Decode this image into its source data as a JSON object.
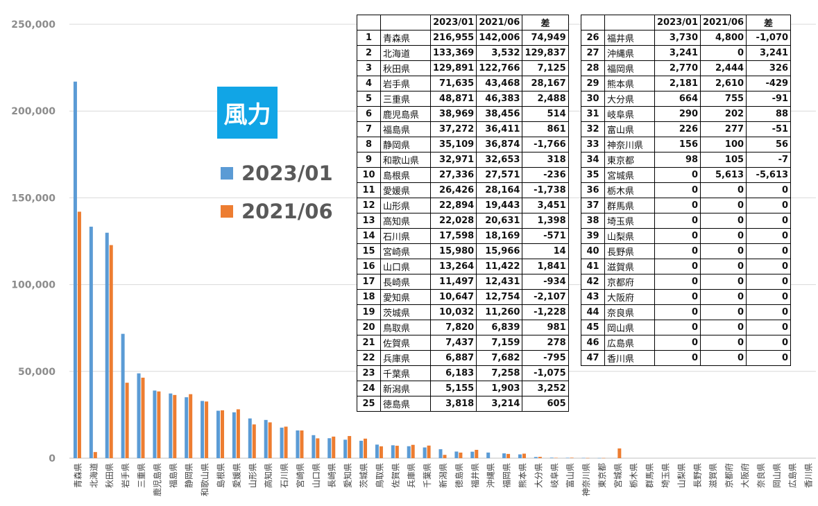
{
  "badge": "風力",
  "legend": {
    "a": {
      "label": "2023/01",
      "color": "#5b9bd5"
    },
    "b": {
      "label": "2021/06",
      "color": "#ed7d31"
    }
  },
  "table": {
    "headers": [
      "",
      "",
      "2023/01",
      "2021/06",
      "差"
    ],
    "rows": [
      [
        "1",
        "青森県",
        "216,955",
        "142,006",
        "74,949"
      ],
      [
        "2",
        "北海道",
        "133,369",
        "3,532",
        "129,837"
      ],
      [
        "3",
        "秋田県",
        "129,891",
        "122,766",
        "7,125"
      ],
      [
        "4",
        "岩手県",
        "71,635",
        "43,468",
        "28,167"
      ],
      [
        "5",
        "三重県",
        "48,871",
        "46,383",
        "2,488"
      ],
      [
        "6",
        "鹿児島県",
        "38,969",
        "38,456",
        "514"
      ],
      [
        "7",
        "福島県",
        "37,272",
        "36,411",
        "861"
      ],
      [
        "8",
        "静岡県",
        "35,109",
        "36,874",
        "-1,766"
      ],
      [
        "9",
        "和歌山県",
        "32,971",
        "32,653",
        "318"
      ],
      [
        "10",
        "島根県",
        "27,336",
        "27,571",
        "-236"
      ],
      [
        "11",
        "愛媛県",
        "26,426",
        "28,164",
        "-1,738"
      ],
      [
        "12",
        "山形県",
        "22,894",
        "19,443",
        "3,451"
      ],
      [
        "13",
        "高知県",
        "22,028",
        "20,631",
        "1,398"
      ],
      [
        "14",
        "石川県",
        "17,598",
        "18,169",
        "-571"
      ],
      [
        "15",
        "宮崎県",
        "15,980",
        "15,966",
        "14"
      ],
      [
        "16",
        "山口県",
        "13,264",
        "11,422",
        "1,841"
      ],
      [
        "17",
        "長崎県",
        "11,497",
        "12,431",
        "-934"
      ],
      [
        "18",
        "愛知県",
        "10,647",
        "12,754",
        "-2,107"
      ],
      [
        "19",
        "茨城県",
        "10,032",
        "11,260",
        "-1,228"
      ],
      [
        "20",
        "鳥取県",
        "7,820",
        "6,839",
        "981"
      ],
      [
        "21",
        "佐賀県",
        "7,437",
        "7,159",
        "278"
      ],
      [
        "22",
        "兵庫県",
        "6,887",
        "7,682",
        "-795"
      ],
      [
        "23",
        "千葉県",
        "6,183",
        "7,258",
        "-1,075"
      ],
      [
        "24",
        "新潟県",
        "5,155",
        "1,903",
        "3,252"
      ],
      [
        "25",
        "徳島県",
        "3,818",
        "3,214",
        "605"
      ],
      [
        "26",
        "福井県",
        "3,730",
        "4,800",
        "-1,070"
      ],
      [
        "27",
        "沖縄県",
        "3,241",
        "0",
        "3,241"
      ],
      [
        "28",
        "福岡県",
        "2,770",
        "2,444",
        "326"
      ],
      [
        "29",
        "熊本県",
        "2,181",
        "2,610",
        "-429"
      ],
      [
        "30",
        "大分県",
        "664",
        "755",
        "-91"
      ],
      [
        "31",
        "岐阜県",
        "290",
        "202",
        "88"
      ],
      [
        "32",
        "富山県",
        "226",
        "277",
        "-51"
      ],
      [
        "33",
        "神奈川県",
        "156",
        "100",
        "56"
      ],
      [
        "34",
        "東京都",
        "98",
        "105",
        "-7"
      ],
      [
        "35",
        "宮城県",
        "0",
        "5,613",
        "-5,613"
      ],
      [
        "36",
        "栃木県",
        "0",
        "0",
        "0"
      ],
      [
        "37",
        "群馬県",
        "0",
        "0",
        "0"
      ],
      [
        "38",
        "埼玉県",
        "0",
        "0",
        "0"
      ],
      [
        "39",
        "山梨県",
        "0",
        "0",
        "0"
      ],
      [
        "40",
        "長野県",
        "0",
        "0",
        "0"
      ],
      [
        "41",
        "滋賀県",
        "0",
        "0",
        "0"
      ],
      [
        "42",
        "京都府",
        "0",
        "0",
        "0"
      ],
      [
        "43",
        "大阪府",
        "0",
        "0",
        "0"
      ],
      [
        "44",
        "奈良県",
        "0",
        "0",
        "0"
      ],
      [
        "45",
        "岡山県",
        "0",
        "0",
        "0"
      ],
      [
        "46",
        "広島県",
        "0",
        "0",
        "0"
      ],
      [
        "47",
        "香川県",
        "0",
        "0",
        "0"
      ]
    ]
  },
  "chart_data": {
    "type": "bar",
    "ylim": [
      0,
      250000
    ],
    "yticks": [
      "0",
      "50,000",
      "100,000",
      "150,000",
      "200,000",
      "250,000"
    ],
    "ytick_values": [
      0,
      50000,
      100000,
      150000,
      200000,
      250000
    ],
    "grid": true,
    "categories": [
      "青森県",
      "北海道",
      "秋田県",
      "岩手県",
      "三重県",
      "鹿児島県",
      "福島県",
      "静岡県",
      "和歌山県",
      "島根県",
      "愛媛県",
      "山形県",
      "高知県",
      "石川県",
      "宮崎県",
      "山口県",
      "長崎県",
      "愛知県",
      "茨城県",
      "鳥取県",
      "佐賀県",
      "兵庫県",
      "千葉県",
      "新潟県",
      "徳島県",
      "福井県",
      "沖縄県",
      "福岡県",
      "熊本県",
      "大分県",
      "岐阜県",
      "富山県",
      "神奈川県",
      "東京都",
      "宮城県",
      "栃木県",
      "群馬県",
      "埼玉県",
      "山梨県",
      "長野県",
      "滋賀県",
      "京都府",
      "大阪府",
      "奈良県",
      "岡山県",
      "広島県",
      "香川県"
    ],
    "series": [
      {
        "name": "2023/01",
        "color": "#5b9bd5",
        "values": [
          216955,
          133369,
          129891,
          71635,
          48871,
          38969,
          37272,
          35109,
          32971,
          27336,
          26426,
          22894,
          22028,
          17598,
          15980,
          13264,
          11497,
          10647,
          10032,
          7820,
          7437,
          6887,
          6183,
          5155,
          3818,
          3730,
          3241,
          2770,
          2181,
          664,
          290,
          226,
          156,
          98,
          0,
          0,
          0,
          0,
          0,
          0,
          0,
          0,
          0,
          0,
          0,
          0,
          0
        ]
      },
      {
        "name": "2021/06",
        "color": "#ed7d31",
        "values": [
          142006,
          3532,
          122766,
          43468,
          46383,
          38456,
          36411,
          36874,
          32653,
          27571,
          28164,
          19443,
          20631,
          18169,
          15966,
          11422,
          12431,
          12754,
          11260,
          6839,
          7159,
          7682,
          7258,
          1903,
          3214,
          4800,
          0,
          2444,
          2610,
          755,
          202,
          277,
          100,
          105,
          5613,
          0,
          0,
          0,
          0,
          0,
          0,
          0,
          0,
          0,
          0,
          0,
          0
        ]
      }
    ]
  }
}
